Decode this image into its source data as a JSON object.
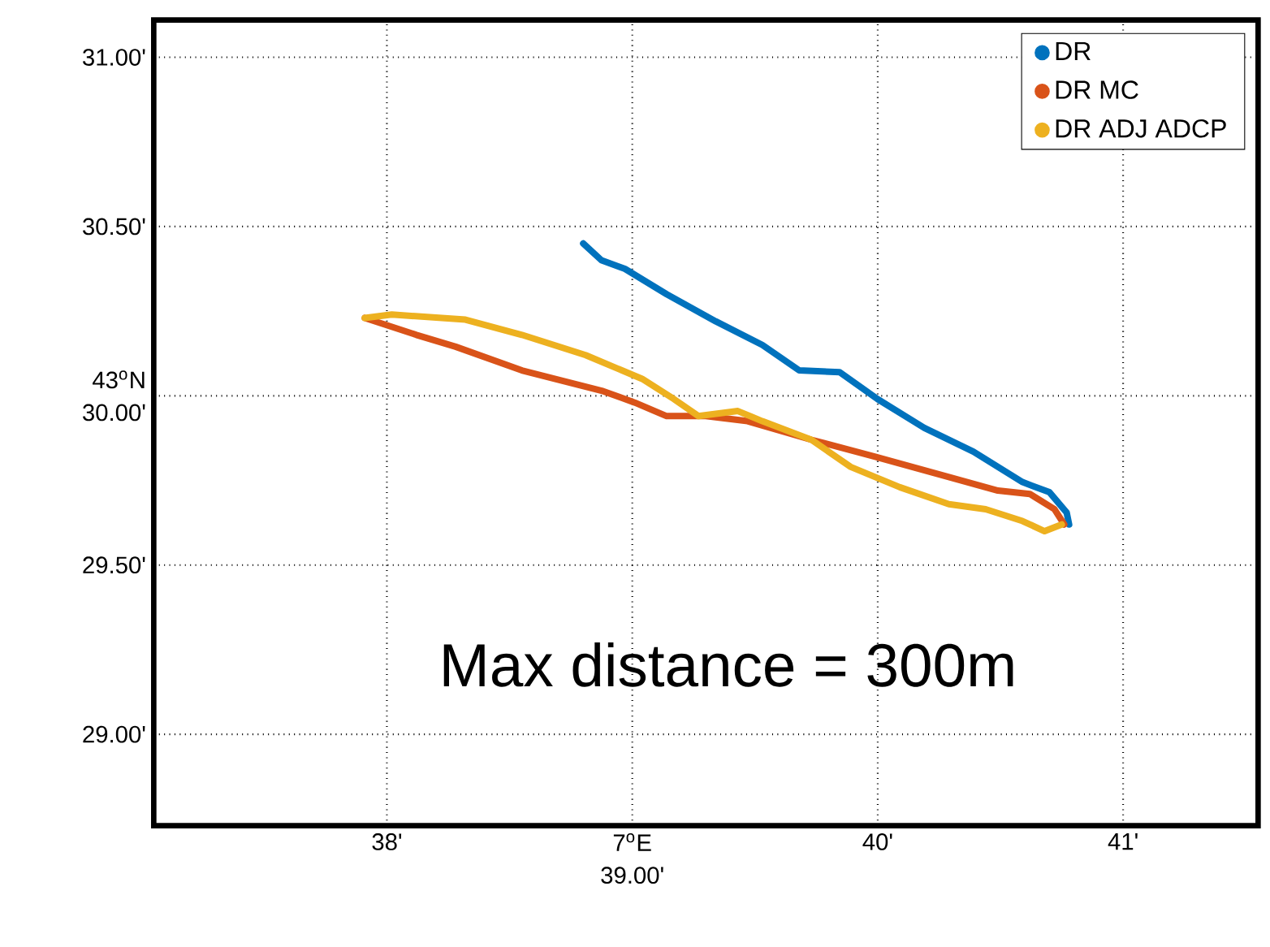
{
  "chart_data": {
    "type": "line",
    "series": [
      {
        "name": "DR",
        "color": "#0072bd",
        "x": [
          38.8,
          38.875,
          38.97,
          39.14,
          39.34,
          39.53,
          39.68,
          39.845,
          40.0,
          40.19,
          40.39,
          40.59,
          40.7,
          40.77,
          40.78
        ],
        "values": [
          30.45,
          30.4,
          30.375,
          30.3,
          30.22,
          30.15,
          30.075,
          30.07,
          29.99,
          29.905,
          29.835,
          29.745,
          29.715,
          29.655,
          29.62
        ]
      },
      {
        "name": "DR MC",
        "color": "#d95319",
        "x": [
          37.91,
          38.12,
          38.28,
          38.55,
          38.875,
          39.01,
          39.14,
          39.3,
          39.47,
          39.73,
          39.99,
          40.29,
          40.49,
          40.62,
          40.72,
          40.76
        ],
        "values": [
          30.23,
          30.18,
          30.145,
          30.075,
          30.015,
          29.98,
          29.94,
          29.94,
          29.925,
          29.87,
          29.82,
          29.76,
          29.72,
          29.71,
          29.665,
          29.62
        ]
      },
      {
        "name": "DR ADJ ADCP",
        "color": "#edb120",
        "x": [
          37.91,
          38.02,
          38.32,
          38.55,
          38.81,
          39.04,
          39.17,
          39.27,
          39.43,
          39.53,
          39.73,
          39.89,
          40.09,
          40.29,
          40.44,
          40.59,
          40.68,
          40.75
        ],
        "values": [
          30.23,
          30.24,
          30.225,
          30.18,
          30.12,
          30.05,
          29.99,
          29.94,
          29.955,
          29.925,
          29.87,
          29.79,
          29.73,
          29.68,
          29.665,
          29.63,
          29.6,
          29.62
        ]
      }
    ],
    "xlim": [
      37.05,
      41.55
    ],
    "ylim": [
      28.73,
      31.11
    ],
    "xticks": [
      {
        "value": 38,
        "label": "38'"
      },
      {
        "value": 39,
        "label": "7$^{o}$E 39.00'"
      },
      {
        "value": 40,
        "label": "40'"
      },
      {
        "value": 41,
        "label": "41'"
      }
    ],
    "yticks": [
      {
        "value": 29,
        "label": "29.00'"
      },
      {
        "value": 29.5,
        "label": "29.50'"
      },
      {
        "value": 30,
        "label": "43$^{o}$N 30.00'"
      },
      {
        "value": 30.5,
        "label": "30.50'"
      },
      {
        "value": 31,
        "label": "31.00'"
      }
    ],
    "grid": true,
    "legend": "top right",
    "line_style": "solid",
    "annotations": [
      "Max distance = 300m"
    ]
  }
}
